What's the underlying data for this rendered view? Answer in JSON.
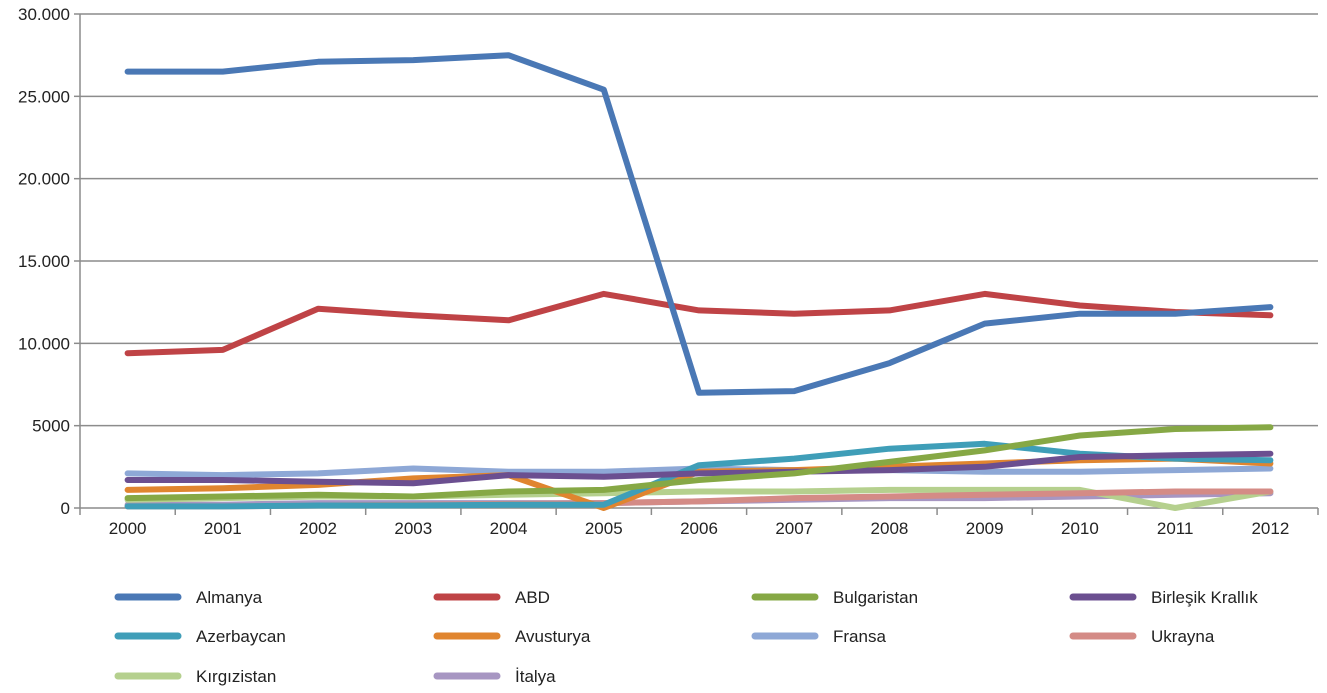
{
  "chart_data": {
    "type": "line",
    "title": "",
    "xlabel": "",
    "ylabel": "",
    "x": [
      "2000",
      "2001",
      "2002",
      "2003",
      "2004",
      "2005",
      "2006",
      "2007",
      "2008",
      "2009",
      "2010",
      "2011",
      "2012"
    ],
    "ylim": [
      0,
      30000
    ],
    "y_ticks": [
      0,
      5000,
      10000,
      15000,
      20000,
      25000,
      30000
    ],
    "y_tick_labels": [
      "0",
      "5000",
      "10.000",
      "15.000",
      "20.000",
      "25.000",
      "30.000"
    ],
    "grid": true,
    "legend_position": "bottom",
    "series": [
      {
        "name": "Almanya",
        "color": "#4a78b5",
        "values": [
          26500,
          26500,
          27100,
          27200,
          27500,
          25400,
          7000,
          7100,
          8800,
          11200,
          11800,
          11800,
          12200
        ]
      },
      {
        "name": "ABD",
        "color": "#bf4346",
        "values": [
          9400,
          9600,
          12100,
          11700,
          11400,
          13000,
          12000,
          11800,
          12000,
          13000,
          12300,
          11900,
          11700
        ]
      },
      {
        "name": "Bulgaristan",
        "color": "#86a845",
        "values": [
          600,
          700,
          800,
          700,
          1000,
          1100,
          1700,
          2100,
          2800,
          3500,
          4400,
          4800,
          4900
        ]
      },
      {
        "name": "Birleşik Krallık",
        "color": "#6b4f90",
        "values": [
          1700,
          1700,
          1600,
          1500,
          2000,
          1900,
          2100,
          2200,
          2300,
          2500,
          3100,
          3200,
          3300
        ]
      },
      {
        "name": "Azerbaycan",
        "color": "#3f9eb8",
        "values": [
          100,
          100,
          150,
          150,
          200,
          200,
          2600,
          3000,
          3600,
          3900,
          3300,
          3000,
          2900
        ]
      },
      {
        "name": "Avusturya",
        "color": "#e0852f",
        "values": [
          1100,
          1200,
          1400,
          1800,
          2000,
          0,
          2200,
          2300,
          2500,
          2700,
          2900,
          3000,
          2700
        ]
      },
      {
        "name": "Fransa",
        "color": "#8ea8d6",
        "values": [
          2100,
          2000,
          2100,
          2400,
          2200,
          2200,
          2400,
          2300,
          2300,
          2200,
          2200,
          2300,
          2400
        ]
      },
      {
        "name": "Ukrayna",
        "color": "#d48b86",
        "values": [
          100,
          100,
          150,
          200,
          250,
          300,
          400,
          600,
          700,
          800,
          900,
          1000,
          1000
        ]
      },
      {
        "name": "Kırgızistan",
        "color": "#b5d08e",
        "values": [
          500,
          600,
          700,
          700,
          800,
          900,
          1000,
          1000,
          1100,
          1100,
          1100,
          0,
          1000
        ]
      },
      {
        "name": "İtalya",
        "color": "#a796c2",
        "values": [
          200,
          200,
          300,
          300,
          300,
          300,
          400,
          500,
          600,
          600,
          700,
          800,
          900
        ]
      }
    ]
  }
}
